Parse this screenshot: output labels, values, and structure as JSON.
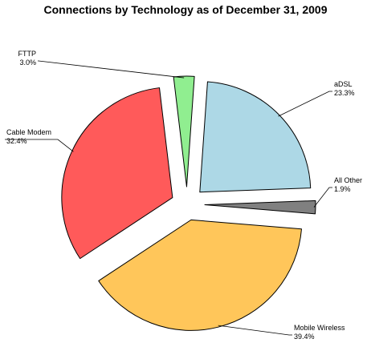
{
  "chart_data": {
    "type": "pie",
    "title": "Connections by Technology as of December 31, 2009",
    "slices": [
      {
        "label": "aDSL",
        "value_text": "23.3%",
        "value": 23.3,
        "color": "#add8e6"
      },
      {
        "label": "All Other",
        "value_text": "1.9%",
        "value": 1.9,
        "color": "#808080"
      },
      {
        "label": "Mobile Wireless",
        "value_text": "39.4%",
        "value": 39.4,
        "color": "#ffc65a"
      },
      {
        "label": "Cable Modem",
        "value_text": "32.4%",
        "value": 32.4,
        "color": "#ff5a5a"
      },
      {
        "label": "FTTP",
        "value_text": "3.0%",
        "value": 3.0,
        "color": "#90ee90"
      }
    ],
    "exploded": true,
    "legend": "none"
  }
}
